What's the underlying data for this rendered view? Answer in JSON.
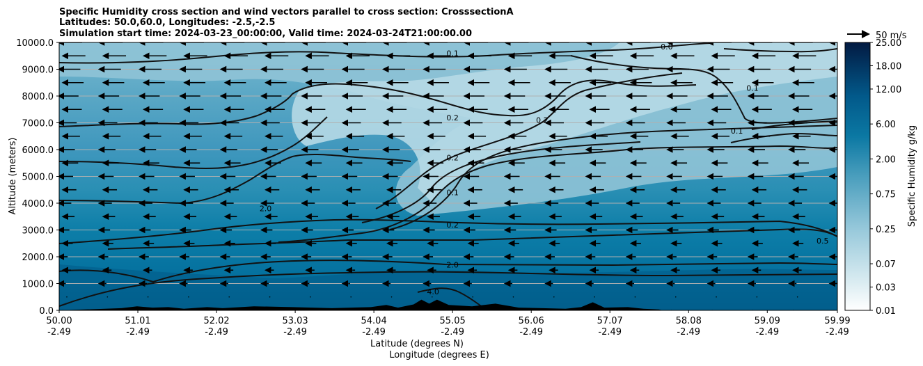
{
  "chart_data": {
    "type": "contourf",
    "title_lines": [
      "Specific Humidity cross section and wind vectors parallel to cross section: CrosssectionA",
      "Latitudes: 50.0,60.0, Longitudes: -2.5,-2.5",
      "Simulation start time: 2024-03-23_00:00:00, Valid time: 2024-03-24T21:00:00.00"
    ],
    "xlabel_lines": [
      "Latitude (degrees N)",
      "Longitude (degrees E)"
    ],
    "ylabel": "Altitude (meters)",
    "x_ticks": [
      {
        "lat": "50.00",
        "lon": "-2.49"
      },
      {
        "lat": "51.01",
        "lon": "-2.49"
      },
      {
        "lat": "52.02",
        "lon": "-2.49"
      },
      {
        "lat": "53.03",
        "lon": "-2.49"
      },
      {
        "lat": "54.04",
        "lon": "-2.49"
      },
      {
        "lat": "55.05",
        "lon": "-2.49"
      },
      {
        "lat": "56.06",
        "lon": "-2.49"
      },
      {
        "lat": "57.07",
        "lon": "-2.49"
      },
      {
        "lat": "58.08",
        "lon": "-2.49"
      },
      {
        "lat": "59.09",
        "lon": "-2.49"
      },
      {
        "lat": "59.99",
        "lon": "-2.49"
      }
    ],
    "y_ticks": [
      "0.0",
      "1000.0",
      "2000.0",
      "3000.0",
      "4000.0",
      "5000.0",
      "6000.0",
      "7000.0",
      "8000.0",
      "9000.0",
      "10000.0"
    ],
    "xlim": [
      50.0,
      59.99
    ],
    "ylim": [
      0,
      10000
    ],
    "grid": "horizontal",
    "colorbar": {
      "label": "Specific Humidity g/kg",
      "levels": [
        0.01,
        0.02,
        0.03,
        0.05,
        0.07,
        0.1,
        0.15,
        0.25,
        0.35,
        0.5,
        0.75,
        1.0,
        1.5,
        2.0,
        3.0,
        4.0,
        6.0,
        8.0,
        10.0,
        12.0,
        15.0,
        18.0,
        21.0,
        25.0
      ],
      "tick_labels": [
        "0.01",
        "0.03",
        "0.07",
        "0.25",
        "0.75",
        "2.00",
        "6.00",
        "12.00",
        "18.00",
        "25.00"
      ],
      "colors": [
        "#f7fbfc",
        "#e6f2f5",
        "#d6eaef",
        "#c4e1e9",
        "#b3d8e3",
        "#a3cfde",
        "#92c5d7",
        "#80bbd1",
        "#6eb1ca",
        "#5ba7c3",
        "#489dbd",
        "#3593b6",
        "#248aaf",
        "#1580a9",
        "#0a76a1",
        "#046b99",
        "#025f8e",
        "#025383",
        "#024776",
        "#023b69",
        "#022f5c",
        "#02234e",
        "#021a42"
      ]
    },
    "contour_labels": [
      {
        "text": "0.1",
        "lat": 55.05,
        "alt": 9600
      },
      {
        "text": "0.2",
        "lat": 55.05,
        "alt": 7200
      },
      {
        "text": "0.2",
        "lat": 55.05,
        "alt": 5700
      },
      {
        "text": "0.1",
        "lat": 55.05,
        "alt": 4400
      },
      {
        "text": "0.2",
        "lat": 55.05,
        "alt": 3200
      },
      {
        "text": "2.0",
        "lat": 55.05,
        "alt": 1700
      },
      {
        "text": "2.0",
        "lat": 52.65,
        "alt": 3800
      },
      {
        "text": "0.2",
        "lat": 56.2,
        "alt": 7100
      },
      {
        "text": "0.1",
        "lat": 58.7,
        "alt": 6700
      },
      {
        "text": "0.1",
        "lat": 58.9,
        "alt": 8300
      },
      {
        "text": "0.5",
        "lat": 59.8,
        "alt": 2600
      },
      {
        "text": "4.0",
        "lat": 54.8,
        "alt": 700
      },
      {
        "text": "0.0",
        "lat": 57.8,
        "alt": 9850
      }
    ],
    "wind_key": {
      "label": "50 m/s",
      "value": 50
    },
    "terrain": [
      [
        50.0,
        0
      ],
      [
        50.5,
        50
      ],
      [
        50.8,
        80
      ],
      [
        51.0,
        150
      ],
      [
        51.2,
        100
      ],
      [
        51.4,
        120
      ],
      [
        51.6,
        60
      ],
      [
        51.9,
        120
      ],
      [
        52.1,
        80
      ],
      [
        52.5,
        150
      ],
      [
        53.0,
        120
      ],
      [
        53.5,
        80
      ],
      [
        54.0,
        120
      ],
      [
        54.2,
        200
      ],
      [
        54.35,
        100
      ],
      [
        54.55,
        220
      ],
      [
        54.65,
        400
      ],
      [
        54.75,
        250
      ],
      [
        54.85,
        400
      ],
      [
        55.0,
        200
      ],
      [
        55.3,
        150
      ],
      [
        55.6,
        250
      ],
      [
        55.9,
        100
      ],
      [
        56.2,
        80
      ],
      [
        56.5,
        60
      ],
      [
        56.7,
        120
      ],
      [
        56.85,
        300
      ],
      [
        57.0,
        100
      ],
      [
        57.3,
        120
      ],
      [
        57.5,
        60
      ],
      [
        57.7,
        30
      ],
      [
        57.75,
        0
      ]
    ]
  }
}
